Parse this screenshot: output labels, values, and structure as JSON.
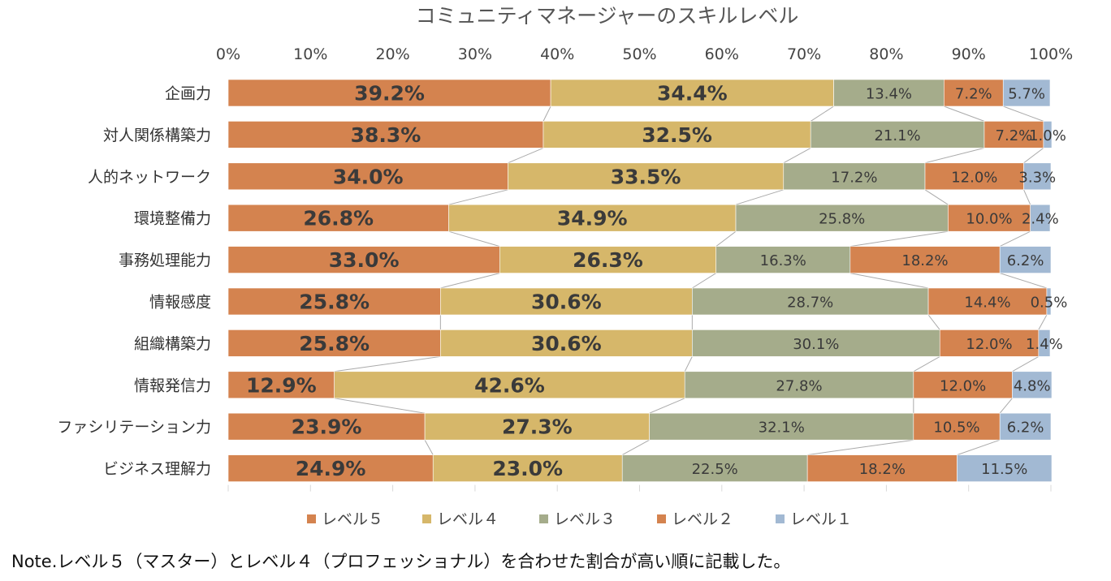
{
  "chart_data": {
    "type": "bar",
    "orientation": "horizontal",
    "stacked": "percent",
    "title": "コミュニティマネージャーのスキルレベル",
    "x_ticks": [
      "0%",
      "10%",
      "20%",
      "30%",
      "40%",
      "50%",
      "60%",
      "70%",
      "80%",
      "90%",
      "100%"
    ],
    "xlim": [
      0,
      100
    ],
    "legend_position": "bottom",
    "grid": false,
    "series_lines": true,
    "categories": [
      "企画力",
      "対人関係構築力",
      "人的ネットワーク",
      "環境整備力",
      "事務処理能力",
      "情報感度",
      "組織構築力",
      "情報発信力",
      "ファシリテーション力",
      "ビジネス理解力"
    ],
    "series": [
      {
        "name": "レベル５",
        "color": "#d4834f",
        "bold_labels": true,
        "values": [
          39.2,
          38.3,
          34.0,
          26.8,
          33.0,
          25.8,
          25.8,
          12.9,
          23.9,
          24.9
        ]
      },
      {
        "name": "レベル４",
        "color": "#d6b76a",
        "bold_labels": true,
        "values": [
          34.4,
          32.5,
          33.5,
          34.9,
          26.3,
          30.6,
          30.6,
          42.6,
          27.3,
          23.0
        ]
      },
      {
        "name": "レベル３",
        "color": "#a5ac8b",
        "bold_labels": false,
        "values": [
          13.4,
          21.1,
          17.2,
          25.8,
          16.3,
          28.7,
          30.1,
          27.8,
          32.1,
          22.5
        ]
      },
      {
        "name": "レベル２",
        "color": "#d4834f",
        "bold_labels": false,
        "values": [
          7.2,
          7.2,
          12.0,
          10.0,
          18.2,
          14.4,
          12.0,
          12.0,
          10.5,
          18.2
        ]
      },
      {
        "name": "レベル１",
        "color": "#a2b9d3",
        "bold_labels": false,
        "values": [
          5.7,
          1.0,
          3.3,
          2.4,
          6.2,
          0.5,
          1.4,
          4.8,
          6.2,
          11.5
        ]
      }
    ]
  },
  "note": "Note.レベル５（マスター）とレベル４（プロフェッショナル）を合わせた割合が高い順に記載した。"
}
